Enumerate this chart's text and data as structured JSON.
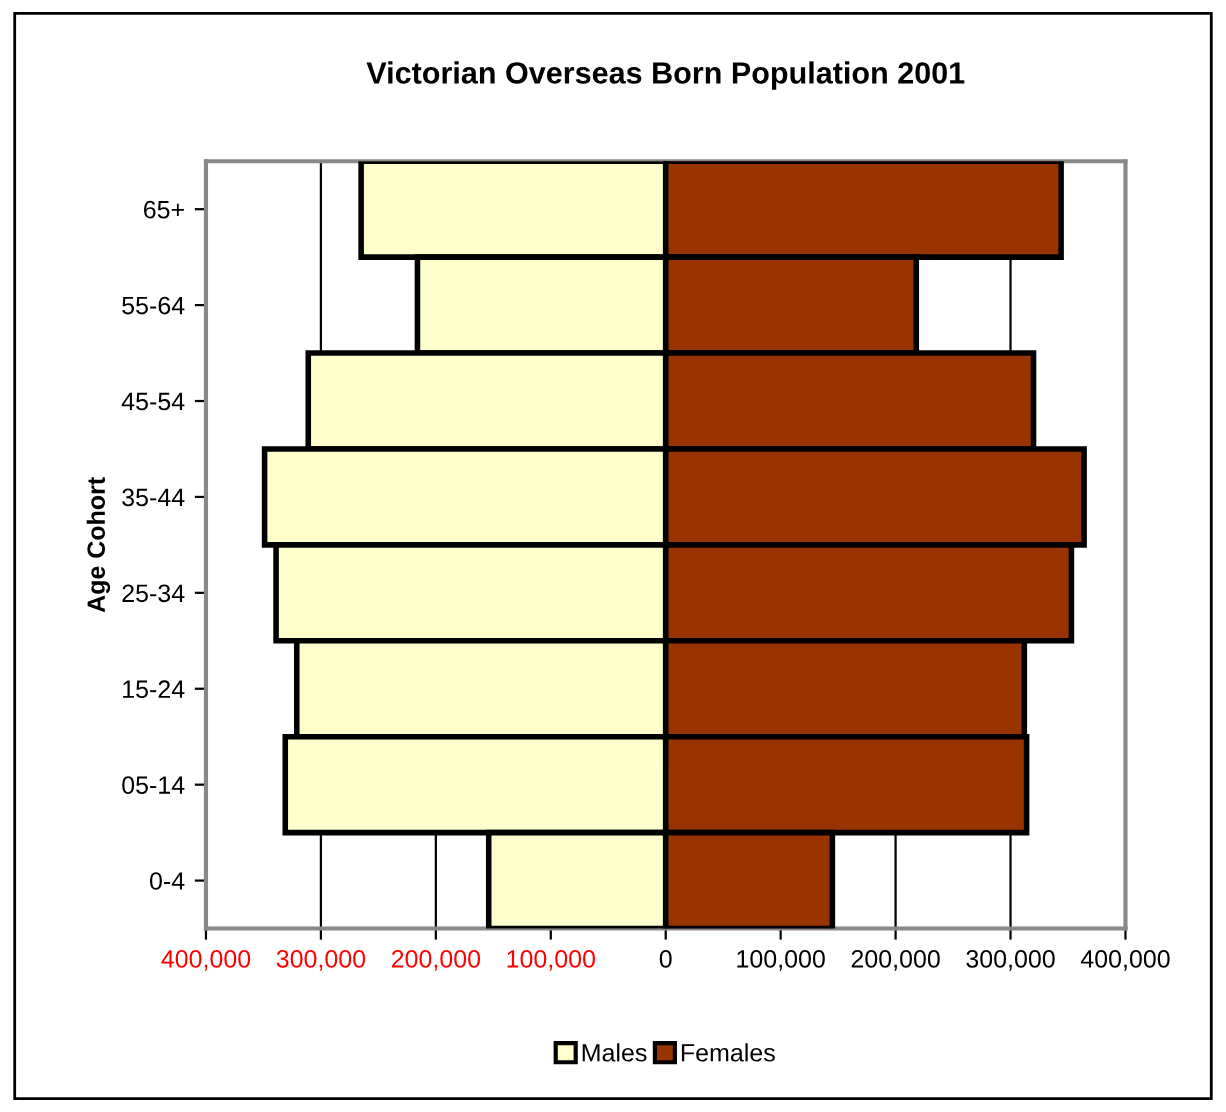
{
  "chart_data": {
    "type": "bar",
    "orientation": "horizontal",
    "title": "Victorian Overseas Born Population 2001",
    "ylabel": "Age Cohort",
    "categories": [
      "65+",
      "55-64",
      "45-54",
      "35-44",
      "25-34",
      "15-24",
      "05-14",
      "0-4"
    ],
    "series": [
      {
        "name": "Males",
        "color": "#ffffcc",
        "values": [
          -265000,
          -216000,
          -311000,
          -349000,
          -339000,
          -321000,
          -331000,
          -154000
        ]
      },
      {
        "name": "Females",
        "color": "#993300",
        "values": [
          344000,
          218000,
          320000,
          364000,
          353000,
          312000,
          314000,
          145000
        ]
      }
    ],
    "xlim": [
      -400000,
      400000
    ],
    "xticks": [
      {
        "value": -400000,
        "label": "400,000"
      },
      {
        "value": -300000,
        "label": "300,000"
      },
      {
        "value": -200000,
        "label": "200,000"
      },
      {
        "value": -100000,
        "label": "100,000"
      },
      0,
      {
        "value": 100000,
        "label": "100,000"
      },
      {
        "value": 200000,
        "label": "200,000"
      },
      {
        "value": 300000,
        "label": "300,000"
      },
      {
        "value": 400000,
        "label": "400,000"
      }
    ],
    "grid": "x",
    "legend": "bottom",
    "stacked": true
  }
}
